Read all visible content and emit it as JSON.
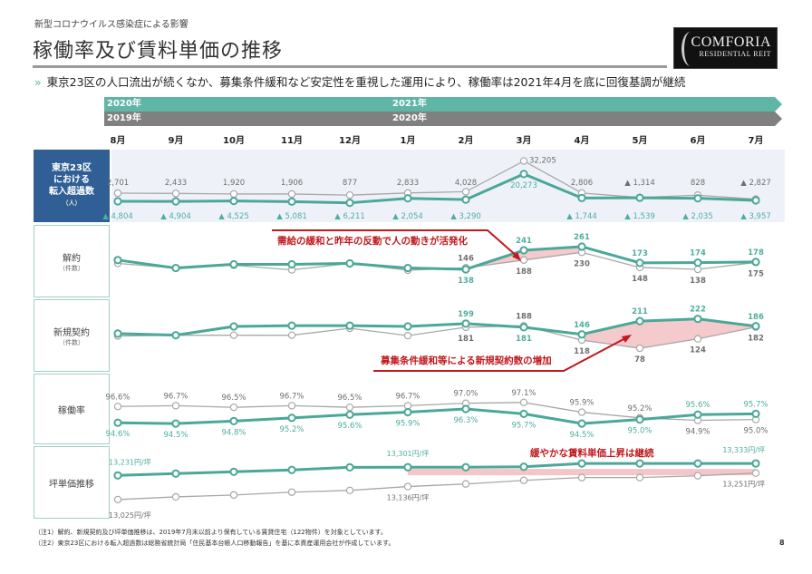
{
  "header": {
    "subtitle": "新型コロナウイルス感染症による影響",
    "title": "稼働率及び賃料単価の推移",
    "logo_line1": "COMFORIA",
    "logo_line2": "RESIDENTIAL REIT"
  },
  "bullet": {
    "marker": "»",
    "text": "東京23区の人口流出が続くなか、募集条件緩和など安定性を重視した運用により、稼働率は2021年4月を底に回復基調が継続"
  },
  "period_bars": {
    "current_start": "2020年",
    "current_next": "2021年",
    "prior_start": "2019年",
    "prior_next": "2020年"
  },
  "months": [
    "8月",
    "9月",
    "10月",
    "11月",
    "12月",
    "1月",
    "2月",
    "3月",
    "4月",
    "5月",
    "6月",
    "7月"
  ],
  "row_labels": [
    {
      "title": "東京23区\nにおける\n転入超過数",
      "unit": "（人）"
    },
    {
      "title": "解約",
      "unit": "（件数）"
    },
    {
      "title": "新規契約",
      "unit": "（件数）"
    },
    {
      "title": "稼働率",
      "unit": ""
    },
    {
      "title": "坪単価推移",
      "unit": ""
    }
  ],
  "colors": {
    "current": "#4aa898",
    "prior": "#a8a8a8",
    "highlight": "#f2b8bc",
    "annotation": "#c0191e",
    "label_box": "#2f5f94"
  },
  "annotations": {
    "cancellation": "需給の緩和と昨年の反動で人の動きが活発化",
    "new_contracts": "募集条件緩和等による新規契約数の増加",
    "rent": "緩やかな賃料単価上昇は継続"
  },
  "chart_data": [
    {
      "type": "line",
      "ylabel": "東京23区における転入超過数（人）",
      "categories": [
        "8月",
        "9月",
        "10月",
        "11月",
        "12月",
        "1月",
        "2月",
        "3月",
        "4月",
        "5月",
        "6月",
        "7月"
      ],
      "ylim": [
        -19800,
        38500
      ],
      "series": [
        {
          "period": "2020年-2021年",
          "values": [
            -4804,
            -4904,
            -4525,
            -5081,
            -6211,
            -2054,
            -3290,
            20273,
            -1744,
            -1539,
            -2035,
            -3957
          ],
          "labels": [
            "▲ 4,804",
            "▲ 4,904",
            "▲ 4,525",
            "▲ 5,081",
            "▲ 6,211",
            "▲ 2,054",
            "▲ 3,290",
            "20,273",
            "▲ 1,744",
            "▲ 1,539",
            "▲ 2,035",
            "▲ 3,957"
          ]
        },
        {
          "period": "2019年-2020年",
          "values": [
            2701,
            2433,
            1920,
            1906,
            877,
            2833,
            4028,
            32205,
            2806,
            -1314,
            828,
            -2827
          ],
          "labels": [
            "2,701",
            "2,433",
            "1,920",
            "1,906",
            "877",
            "2,833",
            "4,028",
            "32,205",
            "2,806",
            "▲ 1,314",
            "828",
            "▲ 2,827"
          ]
        }
      ]
    },
    {
      "type": "line",
      "ylabel": "解約（件数）",
      "categories": [
        "8月",
        "9月",
        "10月",
        "11月",
        "12月",
        "1月",
        "2月",
        "3月",
        "4月",
        "5月",
        "6月",
        "7月"
      ],
      "ylim": [
        15,
        310
      ],
      "series": [
        {
          "period": "2020年-2021年",
          "values": [
            188,
            145,
            165,
            165,
            170,
            145,
            138,
            241,
            261,
            173,
            174,
            178
          ],
          "labels": [
            null,
            null,
            null,
            null,
            null,
            null,
            "138",
            "241",
            "261",
            "173",
            "174",
            "178"
          ]
        },
        {
          "period": "2019年-2020年",
          "values": [
            170,
            145,
            160,
            135,
            170,
            133,
            146,
            188,
            230,
            148,
            138,
            175
          ],
          "labels": [
            null,
            null,
            null,
            null,
            null,
            null,
            "146",
            "188",
            "230",
            "148",
            "138",
            "175"
          ]
        }
      ]
    },
    {
      "type": "line",
      "ylabel": "新規契約（件数）",
      "categories": [
        "8月",
        "9月",
        "10月",
        "11月",
        "12月",
        "1月",
        "2月",
        "3月",
        "4月",
        "5月",
        "6月",
        "7月"
      ],
      "ylim": [
        7,
        274
      ],
      "series": [
        {
          "period": "2020年-2021年",
          "values": [
            150,
            142,
            185,
            189,
            189,
            185,
            199,
            181,
            146,
            211,
            222,
            186
          ],
          "labels": [
            null,
            null,
            null,
            null,
            null,
            null,
            "199",
            "181",
            "146",
            "211",
            "222",
            "186"
          ]
        },
        {
          "period": "2019年-2020年",
          "values": [
            138,
            142,
            142,
            142,
            176,
            140,
            181,
            188,
            118,
            78,
            124,
            182
          ],
          "labels": [
            null,
            null,
            null,
            null,
            null,
            null,
            "181",
            "188",
            "118",
            "78",
            "124",
            "182"
          ]
        }
      ]
    },
    {
      "type": "line",
      "ylabel": "稼働率",
      "categories": [
        "8月",
        "9月",
        "10月",
        "11月",
        "12月",
        "1月",
        "2月",
        "3月",
        "4月",
        "5月",
        "6月",
        "7月"
      ],
      "ylim": [
        92.5,
        99.2
      ],
      "series": [
        {
          "period": "2020年-2021年",
          "values": [
            94.6,
            94.5,
            94.8,
            95.2,
            95.6,
            95.9,
            96.3,
            95.7,
            94.5,
            95.0,
            95.6,
            95.7
          ],
          "labels": [
            "94.6%",
            "94.5%",
            "94.8%",
            "95.2%",
            "95.6%",
            "95.9%",
            "96.3%",
            "95.7%",
            "94.5%",
            "95.0%",
            "95.6%",
            "95.7%"
          ]
        },
        {
          "period": "2019年-2020年",
          "values": [
            96.6,
            96.7,
            96.5,
            96.7,
            96.5,
            96.7,
            97.0,
            97.1,
            95.9,
            95.2,
            94.9,
            95.0
          ],
          "labels": [
            "96.6%",
            "96.7%",
            "96.5%",
            "96.7%",
            "96.5%",
            "96.7%",
            "97.0%",
            "97.1%",
            "95.9%",
            "95.2%",
            "94.9%",
            "95.0%"
          ]
        }
      ]
    },
    {
      "type": "line",
      "ylabel": "坪単価推移",
      "categories": [
        "8月",
        "9月",
        "10月",
        "11月",
        "12月",
        "1月",
        "2月",
        "3月",
        "4月",
        "5月",
        "6月",
        "7月"
      ],
      "ylim": [
        12916,
        13419
      ],
      "series": [
        {
          "period": "2020年-2021年",
          "values": [
            13231,
            13247,
            13262,
            13278,
            13300,
            13301,
            13301,
            13305,
            13333,
            13333,
            13333,
            13333
          ],
          "labels": [
            "13,231円/坪",
            null,
            null,
            null,
            null,
            "13,301円/坪",
            null,
            null,
            null,
            null,
            null,
            "13,333円/坪"
          ]
        },
        {
          "period": "2019年-2020年",
          "values": [
            13025,
            13048,
            13064,
            13088,
            13103,
            13136,
            13158,
            13189,
            13213,
            13213,
            13228,
            13251
          ],
          "labels": [
            "13,025円/坪",
            null,
            null,
            null,
            null,
            "13,136円/坪",
            null,
            null,
            null,
            null,
            null,
            "13,251円/坪"
          ]
        }
      ]
    }
  ],
  "footnotes": [
    "（注1）解約、新規契約及び坪単価推移は、2019年7月末以前より保有している賃貸住宅（122物件）を対象としています。",
    "（注2）東京23区における転入超過数は総務省統計局「住民基本台帳人口移動報告」を基に本資産運用会社が作成しています。"
  ],
  "page_number": "8"
}
